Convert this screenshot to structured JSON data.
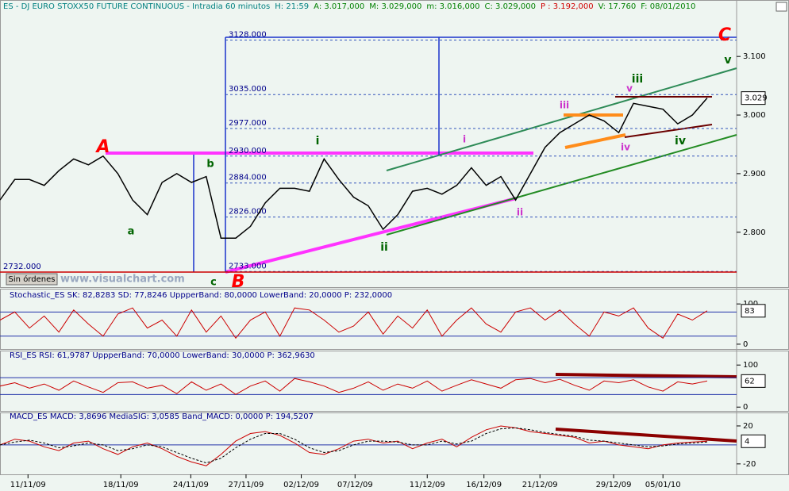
{
  "header": [
    {
      "text": "ES - DJ EURO STOXX50 FUTURE CONTINUOUS - Intradia 60 minutos",
      "color": "#008080"
    },
    {
      "text": "H: 21:59",
      "color": "#008080"
    },
    {
      "text": "A: 3.017,000",
      "color": "#008000"
    },
    {
      "text": "M: 3.029,000",
      "color": "#008000"
    },
    {
      "text": "m: 3.016,000",
      "color": "#008000"
    },
    {
      "text": "C: 3.029,000",
      "color": "#008000"
    },
    {
      "text": "P : 3.192,000",
      "color": "#d00000"
    },
    {
      "text": "V: 17.760",
      "color": "#008000"
    },
    {
      "text": "F: 08/01/2010",
      "color": "#008000"
    }
  ],
  "button": "Sin órdenes",
  "watermark": "www.visualchart.com",
  "chart_data": [
    {
      "type": "line",
      "title": "ES",
      "ylim": [
        2732,
        3172
      ],
      "yticks": [
        {
          "value": 2800,
          "label": "2.800"
        },
        {
          "value": 2900,
          "label": "2.900"
        },
        {
          "value": 3000,
          "label": "3.000"
        },
        {
          "value": 3100,
          "label": "3.100"
        }
      ],
      "xlim": [
        0,
        100
      ],
      "xticks": [
        {
          "value": 3.8,
          "label": "11/11/09"
        },
        {
          "value": 16.4,
          "label": "18/11/09"
        },
        {
          "value": 25.9,
          "label": "24/11/09"
        },
        {
          "value": 33.4,
          "label": "27/11/09"
        },
        {
          "value": 40.9,
          "label": "02/12/09"
        },
        {
          "value": 48.2,
          "label": "07/12/09"
        },
        {
          "value": 58,
          "label": "11/12/09"
        },
        {
          "value": 65.7,
          "label": "16/12/09"
        },
        {
          "value": 73.3,
          "label": "21/12/09"
        },
        {
          "value": 83.3,
          "label": "29/12/09"
        },
        {
          "value": 90,
          "label": "05/01/10"
        }
      ],
      "x": [
        0,
        2,
        4,
        6,
        8,
        10,
        12,
        14,
        16,
        18,
        20,
        22,
        24,
        26,
        28,
        30,
        32,
        34,
        36,
        38,
        40,
        42,
        44,
        46,
        48,
        50,
        52,
        54,
        56,
        58,
        60,
        62,
        64,
        66,
        68,
        70,
        72,
        74,
        76,
        78,
        80,
        82,
        84,
        86,
        88,
        90,
        92,
        94,
        96
      ],
      "series": [
        {
          "name": "ES",
          "color": "#000000",
          "values": [
            2855,
            2890,
            2890,
            2880,
            2905,
            2925,
            2915,
            2930,
            2900,
            2855,
            2830,
            2885,
            2900,
            2885,
            2895,
            2790,
            2790,
            2810,
            2850,
            2875,
            2875,
            2870,
            2925,
            2890,
            2860,
            2845,
            2805,
            2830,
            2870,
            2875,
            2865,
            2880,
            2910,
            2880,
            2895,
            2855,
            2900,
            2945,
            2970,
            2985,
            3000,
            2990,
            2970,
            3020,
            3015,
            3010,
            2985,
            3000,
            3029
          ]
        }
      ],
      "last_label": "3.029",
      "levels": [
        {
          "value": 3128,
          "label": "3128.000"
        },
        {
          "value": 3035,
          "label": "3035.000"
        },
        {
          "value": 2977,
          "label": "2977.000"
        },
        {
          "value": 2930,
          "label": "2930.000"
        },
        {
          "value": 2884,
          "label": "2884.000"
        },
        {
          "value": 2826,
          "label": "2826.000"
        },
        {
          "value": 2733,
          "label": "2733.000"
        },
        {
          "value": 2732,
          "label": "2732.000"
        }
      ],
      "annotations": [
        "A",
        "B",
        "C",
        "a",
        "b",
        "c",
        "i",
        "ii",
        "iii",
        "iv",
        "v",
        "i",
        "ii",
        "iii",
        "iv",
        "v"
      ]
    },
    {
      "type": "line",
      "title": "Stochastic_ES SK: 82,8283 SD: 77,8246 UppperBand: 80,0000 LowerBand: 20,0000 P: 232,0000",
      "ylim": [
        -12,
        122
      ],
      "yticks": [
        0,
        100
      ],
      "bands": [
        20,
        80
      ],
      "last_label": "83",
      "series": [
        {
          "name": "SK",
          "color": "#cc0000",
          "values": [
            60,
            80,
            40,
            70,
            30,
            85,
            50,
            20,
            75,
            90,
            40,
            60,
            20,
            85,
            30,
            70,
            15,
            60,
            80,
            20,
            90,
            85,
            60,
            30,
            45,
            80,
            25,
            70,
            40,
            85,
            20,
            60,
            90,
            50,
            30,
            80,
            90,
            60,
            85,
            50,
            20,
            80,
            70,
            90,
            40,
            15,
            75,
            60,
            83
          ]
        }
      ]
    },
    {
      "type": "line",
      "title": "RSI_ES RSI: 61,9787 UppperBand: 70,0000 LowerBand: 30,0000 P: 362,9630",
      "ylim": [
        -9,
        123
      ],
      "yticks": [
        0,
        100
      ],
      "bands": [
        30,
        70
      ],
      "last_label": "62",
      "series": [
        {
          "name": "RSI",
          "color": "#cc0000",
          "values": [
            50,
            58,
            45,
            55,
            40,
            62,
            48,
            35,
            58,
            60,
            45,
            52,
            32,
            60,
            40,
            55,
            30,
            50,
            62,
            38,
            68,
            60,
            50,
            35,
            45,
            60,
            40,
            55,
            45,
            62,
            38,
            52,
            65,
            55,
            45,
            65,
            68,
            58,
            66,
            52,
            40,
            62,
            58,
            65,
            48,
            38,
            60,
            55,
            62
          ]
        }
      ]
    },
    {
      "type": "line",
      "title": "MACD_ES MACD: 3,8696 MediaSIG: 3,0585 Band_MACD: 0,0000 P: 194,5207",
      "ylim": [
        -31,
        30
      ],
      "yticks": [
        -20,
        20
      ],
      "bands": [
        0
      ],
      "last_label": "4",
      "series": [
        {
          "name": "MACD",
          "color": "#cc0000",
          "values": [
            0,
            6,
            4,
            -2,
            -6,
            2,
            4,
            -4,
            -10,
            -2,
            2,
            -4,
            -12,
            -18,
            -22,
            -10,
            4,
            12,
            14,
            10,
            2,
            -8,
            -10,
            -4,
            4,
            6,
            2,
            4,
            -4,
            2,
            6,
            -2,
            8,
            16,
            20,
            18,
            14,
            12,
            10,
            8,
            2,
            4,
            0,
            -2,
            -4,
            0,
            2,
            3,
            3.87
          ]
        },
        {
          "name": "MediaSIG",
          "color": "#000000",
          "values": [
            0,
            3,
            5,
            2,
            -3,
            -1,
            2,
            0,
            -6,
            -4,
            0,
            -2,
            -8,
            -14,
            -19,
            -14,
            -3,
            6,
            12,
            12,
            6,
            -3,
            -8,
            -6,
            0,
            4,
            4,
            3,
            0,
            0,
            4,
            1,
            4,
            12,
            17,
            18,
            16,
            13,
            11,
            9,
            5,
            4,
            2,
            0,
            -2,
            -1,
            1,
            2,
            3.06
          ]
        }
      ]
    }
  ]
}
